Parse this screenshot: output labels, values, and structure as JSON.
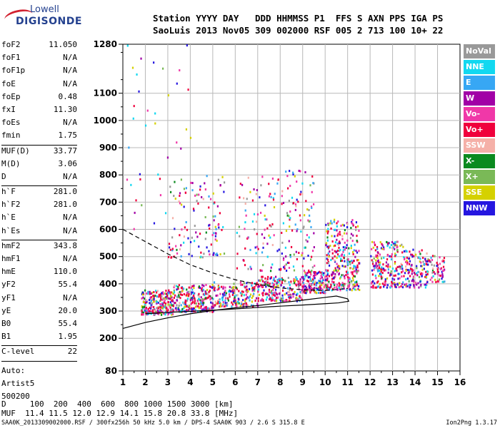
{
  "logo": {
    "line1": "Lowell",
    "line2": "DIGISONDE"
  },
  "header": {
    "line1": "Station YYYY DAY   DDD HHMMSS P1  FFS S AXN PPS IGA PS",
    "line2": "SaoLuis 2013 Nov05 309 002000 RSF 005 2 713 100 10+ 22"
  },
  "params": [
    {
      "k": "foF2",
      "v": "11.050"
    },
    {
      "k": "foF1",
      "v": "N/A"
    },
    {
      "k": "foF1p",
      "v": "N/A"
    },
    {
      "k": "foE",
      "v": "N/A"
    },
    {
      "k": "foEp",
      "v": "0.48"
    },
    {
      "k": "fxI",
      "v": "11.30"
    },
    {
      "k": "foEs",
      "v": "N/A"
    },
    {
      "k": "fmin",
      "v": "1.75"
    },
    {
      "k": "MUF(D)",
      "v": "33.77"
    },
    {
      "k": "M(D)",
      "v": "3.06"
    },
    {
      "k": "D",
      "v": "N/A"
    },
    {
      "k": "h`F",
      "v": "281.0"
    },
    {
      "k": "h`F2",
      "v": "281.0"
    },
    {
      "k": "h`E",
      "v": "N/A"
    },
    {
      "k": "h`Es",
      "v": "N/A"
    },
    {
      "k": "hmF2",
      "v": "343.8"
    },
    {
      "k": "hmF1",
      "v": "N/A"
    },
    {
      "k": "hmE",
      "v": "110.0"
    },
    {
      "k": "yF2",
      "v": "55.4"
    },
    {
      "k": "yF1",
      "v": "N/A"
    },
    {
      "k": "yE",
      "v": "20.0"
    },
    {
      "k": "B0",
      "v": "55.4"
    },
    {
      "k": "B1",
      "v": "1.95"
    },
    {
      "k": "C-level",
      "v": "22"
    }
  ],
  "auto": {
    "line1": "Auto:",
    "line2": "Artist5",
    "line3": "500200"
  },
  "legend": [
    {
      "label": "NoVal",
      "color": "#999999"
    },
    {
      "label": "NNE",
      "color": "#12d8f0"
    },
    {
      "label": "E",
      "color": "#37a7f4"
    },
    {
      "label": "W",
      "color": "#a100a6"
    },
    {
      "label": "Vo-",
      "color": "#f038a8"
    },
    {
      "label": "Vo+",
      "color": "#f0003c"
    },
    {
      "label": "SSW",
      "color": "#f5b0a8"
    },
    {
      "label": "X-",
      "color": "#0b8a1f"
    },
    {
      "label": "X+",
      "color": "#7ab957"
    },
    {
      "label": "SSE",
      "color": "#d5d100"
    },
    {
      "label": "NNW",
      "color": "#2516e0"
    }
  ],
  "footer": {
    "line1": "D     100  200  400  600  800 1000 1500 3000 [km]",
    "line2": "MUF  11.4 11.5 12.0 12.9 14.1 15.8 20.8 33.8 [MHz]",
    "line3": "SAA0K_2013309002000.RSF / 300fx256h 50 kHz 5.0 km / DPS-4 SAA0K 903 / 2.6 S 315.8 E",
    "version": "Ion2Png 1.3.17"
  },
  "chart_data": {
    "type": "scatter",
    "xlim": [
      1,
      16
    ],
    "ylim": [
      80,
      1280
    ],
    "x_ticks": [
      "1",
      "2",
      "3",
      "4",
      "5",
      "6",
      "7",
      "8",
      "9",
      "10",
      "11",
      "12",
      "13",
      "14",
      "15",
      "16"
    ],
    "y_ticks": [
      "80",
      "200",
      "300",
      "400",
      "500",
      "600",
      "700",
      "800",
      "900",
      "1000",
      "1100",
      "1280"
    ],
    "grid": true,
    "legend_position": "right",
    "trace_clusters": [
      {
        "x": [
          1.8,
          3.2
        ],
        "y": [
          290,
          380
        ],
        "density": 260
      },
      {
        "x": [
          3.2,
          5.0
        ],
        "y": [
          300,
          400
        ],
        "density": 240
      },
      {
        "x": [
          5.0,
          7.0
        ],
        "y": [
          320,
          410
        ],
        "density": 200
      },
      {
        "x": [
          7.0,
          9.0
        ],
        "y": [
          340,
          430
        ],
        "density": 220
      },
      {
        "x": [
          9.0,
          10.0
        ],
        "y": [
          370,
          450
        ],
        "density": 140
      },
      {
        "x": [
          10.0,
          11.5
        ],
        "y": [
          380,
          640
        ],
        "density": 320
      },
      {
        "x": [
          12.0,
          13.5
        ],
        "y": [
          390,
          560
        ],
        "density": 220
      },
      {
        "x": [
          13.5,
          14.5
        ],
        "y": [
          390,
          530
        ],
        "density": 120
      },
      {
        "x": [
          14.5,
          15.3
        ],
        "y": [
          410,
          510
        ],
        "density": 70
      },
      {
        "x": [
          3.0,
          5.5
        ],
        "y": [
          500,
          800
        ],
        "density": 120
      },
      {
        "x": [
          6.0,
          8.0
        ],
        "y": [
          450,
          800
        ],
        "density": 90
      },
      {
        "x": [
          8.0,
          9.5
        ],
        "y": [
          450,
          820
        ],
        "density": 110
      },
      {
        "x": [
          1.0,
          4.5
        ],
        "y": [
          600,
          1280
        ],
        "density": 40
      }
    ],
    "profile_solid": [
      [
        1.0,
        236
      ],
      [
        2.0,
        258
      ],
      [
        3.0,
        275
      ],
      [
        4.0,
        290
      ],
      [
        5.0,
        302
      ],
      [
        6.0,
        312
      ],
      [
        7.0,
        320
      ],
      [
        8.0,
        330
      ],
      [
        9.0,
        340
      ],
      [
        10.0,
        350
      ],
      [
        10.5,
        355
      ],
      [
        11.0,
        345
      ],
      [
        11.05,
        336
      ],
      [
        10.6,
        330
      ],
      [
        10.0,
        327
      ],
      [
        9.0,
        322
      ],
      [
        8.0,
        318
      ],
      [
        7.0,
        313
      ],
      [
        6.0,
        308
      ],
      [
        5.0,
        303
      ],
      [
        4.0,
        299
      ],
      [
        3.0,
        295
      ],
      [
        2.0,
        290
      ]
    ],
    "profile_dashed": [
      [
        1.0,
        600
      ],
      [
        2.0,
        555
      ],
      [
        3.0,
        510
      ],
      [
        4.0,
        470
      ],
      [
        5.0,
        440
      ],
      [
        6.0,
        415
      ],
      [
        7.0,
        398
      ],
      [
        8.0,
        385
      ],
      [
        9.0,
        378
      ],
      [
        10.0,
        375
      ],
      [
        10.6,
        380
      ],
      [
        11.0,
        383
      ]
    ]
  }
}
